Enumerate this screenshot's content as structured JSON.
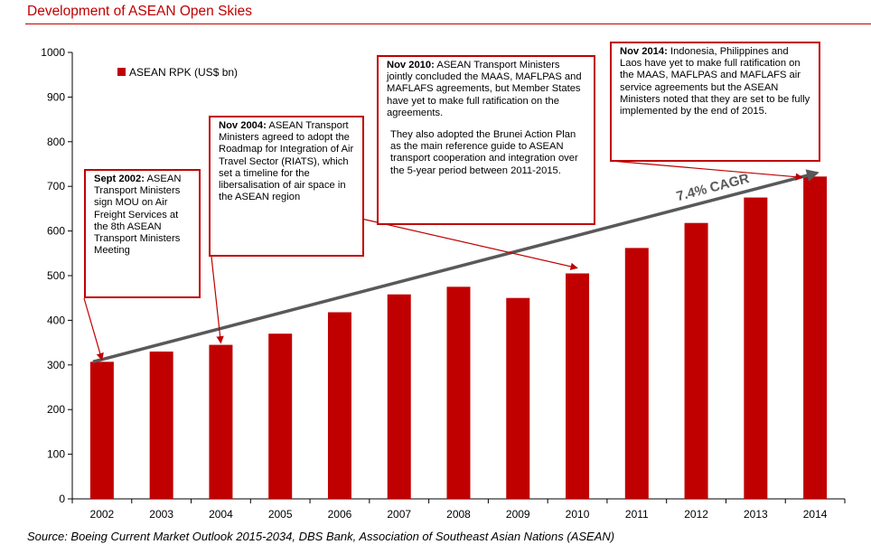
{
  "title": "Development of ASEAN Open Skies",
  "source": "Source: Boeing Current Market Outlook 2015-2034, DBS Bank, Association of Southeast Asian Nations (ASEAN)",
  "colors": {
    "bar": "#c00000",
    "trend": "#595959",
    "title": "#c00000"
  },
  "chart_data": {
    "type": "bar",
    "title": "Development of ASEAN Open Skies",
    "categories": [
      "2002",
      "2003",
      "2004",
      "2005",
      "2006",
      "2007",
      "2008",
      "2009",
      "2010",
      "2011",
      "2012",
      "2013",
      "2014"
    ],
    "series": [
      {
        "name": "ASEAN RPK (US$ bn)",
        "values": [
          307,
          330,
          345,
          370,
          418,
          458,
          475,
          450,
          505,
          562,
          618,
          675,
          722
        ]
      }
    ],
    "ylim": [
      0,
      1000
    ],
    "yticks": [
      0,
      100,
      200,
      300,
      400,
      500,
      600,
      700,
      800,
      900,
      1000
    ],
    "legend": "top-left",
    "grid": false,
    "trend_label": "7.4% CAGR",
    "trend_from": {
      "x": "2002",
      "y": 307
    },
    "trend_to": {
      "x": "2014",
      "y": 722
    }
  },
  "annotations": [
    {
      "heading": "Sept 2002:",
      "text": "ASEAN Transport Ministers sign MOU on Air Freight Services at the 8th ASEAN Transport Ministers Meeting",
      "points_to": "2002"
    },
    {
      "heading": "Nov 2004:",
      "text": "ASEAN Transport Ministers agreed to adopt the Roadmap for Integration of Air Travel Sector (RIATS), which set a timeline for the libersalisation of air space in the ASEAN region",
      "points_to": "2004"
    },
    {
      "heading": "Nov 2010:",
      "text": "ASEAN Transport Ministers jointly concluded the MAAS, MAFLPAS and MAFLAFS agreements, but Member States have yet to make full ratification on the agreements.",
      "text2": "They also adopted the Brunei Action Plan as the main reference guide to ASEAN transport cooperation and integration over the 5-year period between 2011-2015.",
      "points_to": "2010"
    },
    {
      "heading": "Nov 2014:",
      "text": "Indonesia, Philippines and Laos have yet to make full ratification on the MAAS, MAFLPAS and MAFLAFS air service agreements but the ASEAN Ministers noted that they are set to be fully implemented by the end of 2015.",
      "points_to": "2014"
    }
  ]
}
